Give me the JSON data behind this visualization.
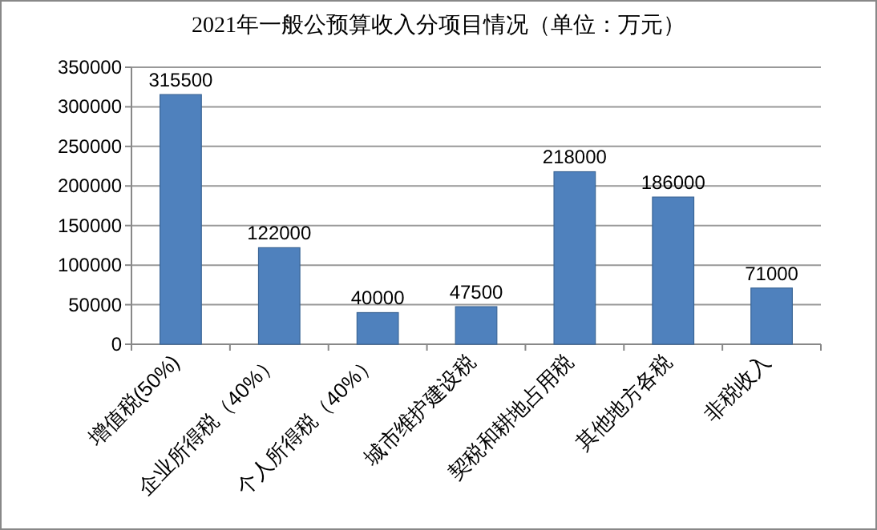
{
  "chart_data": {
    "type": "bar",
    "title": "2021年一般公预算收入分项目情况（单位：万元）",
    "categories": [
      "增值税(50%)",
      "企业所得税（40%）",
      "个人所得税（40%）",
      "城市维护建设税",
      "契税和耕地占用税",
      "其他地方各税",
      "非税收入"
    ],
    "values": [
      315500,
      122000,
      40000,
      47500,
      218000,
      186000,
      71000
    ],
    "color": "#4f81bd",
    "ylim": [
      0,
      350000
    ],
    "yticks": [
      0,
      50000,
      100000,
      150000,
      200000,
      250000,
      300000,
      350000
    ],
    "grid": "y",
    "data_labels": true
  }
}
